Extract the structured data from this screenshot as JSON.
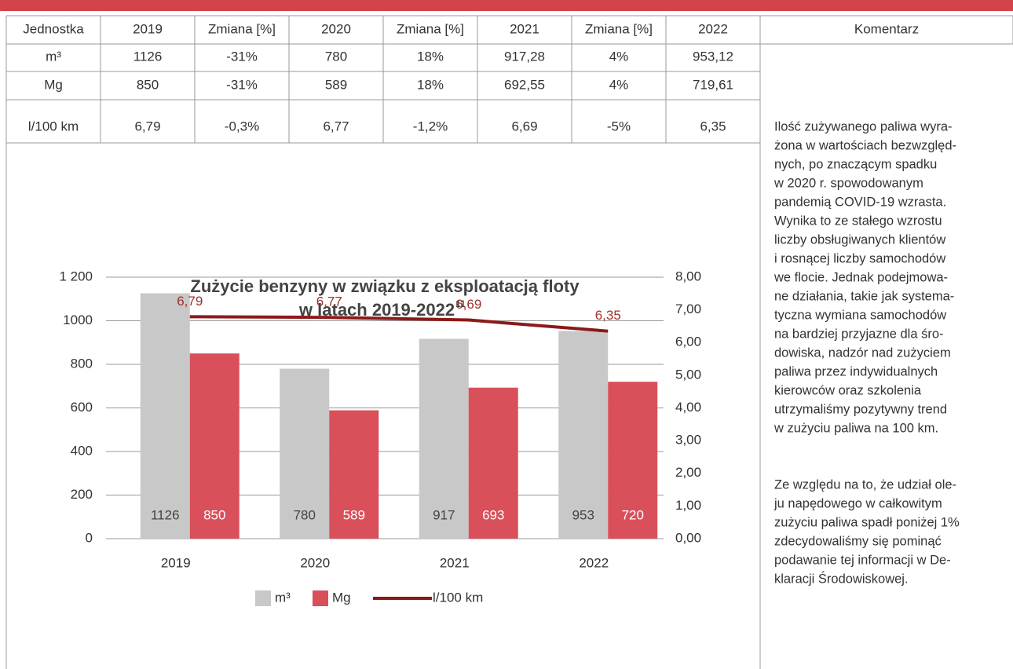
{
  "table": {
    "header": [
      "Jednostka",
      "2019",
      "Zmiana [%]",
      "2020",
      "Zmiana [%]",
      "2021",
      "Zmiana [%]",
      "2022",
      "Komentarz"
    ],
    "rows": [
      [
        "m³",
        "1126",
        "-31%",
        "780",
        "18%",
        "917,28",
        "4%",
        "953,12"
      ],
      [
        "Mg",
        "850",
        "-31%",
        "589",
        "18%",
        "692,55",
        "4%",
        "719,61"
      ],
      [
        "l/100 km",
        "6,79",
        "-0,3%",
        "6,77",
        "-1,2%",
        "6,69",
        "-5%",
        "6,35"
      ]
    ]
  },
  "comment": {
    "paragraphs": [
      [
        "Ilość zużywanego paliwa wyra-",
        "żona w wartościach bezwzględ-",
        "nych, po znaczącym spadku",
        "w 2020 r. spowodowanym",
        "pandemią COVID-19 wzrasta.",
        "Wynika to ze stałego wzrostu",
        "liczby obsługiwanych klientów",
        "i rosnącej liczby samochodów",
        "we flocie. Jednak podejmowa-",
        "ne działania, takie jak systema-",
        "tyczna wymiana samochodów",
        "na bardziej przyjazne dla śro-",
        "dowiska, nadzór nad zużyciem",
        "paliwa przez indywidualnych",
        "kierowców oraz szkolenia",
        "utrzymaliśmy pozytywny trend",
        "w zużyciu paliwa na 100 km."
      ],
      [
        "Ze względu na to, że udział ole-",
        "ju napędowego w całkowitym",
        "zużyciu paliwa spadł poniżej 1%",
        "zdecydowaliśmy się pominąć",
        "podawanie tej informacji w De-",
        "klaracji Środowiskowej."
      ]
    ]
  },
  "chart_data": {
    "type": "bar",
    "title": [
      "Zużycie benzyny w związku z eksploatacją floty",
      "w latach 2019-2022"
    ],
    "title_footnote": "11",
    "categories": [
      "2019",
      "2020",
      "2021",
      "2022"
    ],
    "series": [
      {
        "name": "m³",
        "color": "#c8c8c8",
        "values": [
          1126,
          780,
          917,
          953
        ]
      },
      {
        "name": "Mg",
        "color": "#d9505a",
        "values": [
          850,
          589,
          693,
          720
        ]
      },
      {
        "name": "l/100 km",
        "color": "#8b1a1a",
        "type": "line",
        "axis": "y2",
        "values": [
          6.79,
          6.77,
          6.69,
          6.35
        ],
        "value_labels": [
          "6,79",
          "6,77",
          "6,69",
          "6,35"
        ]
      }
    ],
    "ylim": [
      0,
      1200
    ],
    "yticks": [
      0,
      200,
      400,
      600,
      800,
      1000,
      {
        "value": 1200,
        "label": "1 200"
      }
    ],
    "y2lim": [
      0,
      8
    ],
    "y2ticks": [
      {
        "value": 0,
        "label": "0,00"
      },
      {
        "value": 1,
        "label": "1,00"
      },
      {
        "value": 2,
        "label": "2,00"
      },
      {
        "value": 3,
        "label": "3,00"
      },
      {
        "value": 4,
        "label": "4,00"
      },
      {
        "value": 5,
        "label": "5,00"
      },
      {
        "value": 6,
        "label": "6,00"
      },
      {
        "value": 7,
        "label": "7,00"
      },
      {
        "value": 8,
        "label": "8,00"
      }
    ],
    "grid": true,
    "legend": "bottom"
  }
}
